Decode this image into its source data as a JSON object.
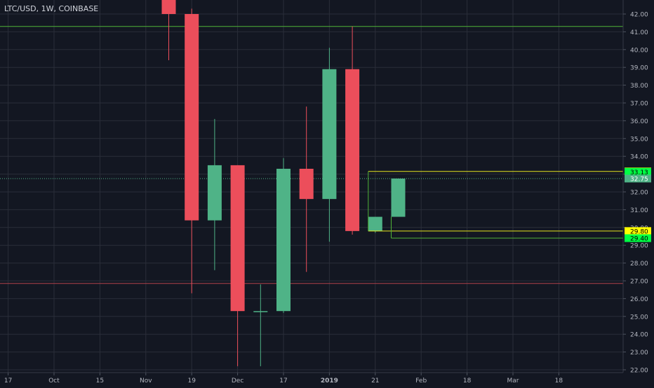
{
  "header": {
    "symbol_title": "LTC/USD, 1W, COINBASE"
  },
  "colors": {
    "background": "#131722",
    "grid": "#2a2e39",
    "up_candle": "#4fb387",
    "down_candle": "#ec4e5b",
    "axis_text": "#b2b5be",
    "level_green": "#4fb337",
    "level_yellow": "#e6e61e",
    "level_red": "#b0404a",
    "label_yellow": "#ffff00",
    "label_green": "#00ff44",
    "label_current": "#4fb387"
  },
  "chart_data": {
    "type": "candlestick",
    "title": "LTC/USD, 1W, COINBASE",
    "ylim": [
      21.8,
      42.6
    ],
    "y_ticks": [
      22.0,
      23.0,
      24.0,
      25.0,
      26.0,
      27.0,
      28.0,
      29.0,
      30.0,
      31.0,
      32.0,
      33.0,
      34.0,
      35.0,
      36.0,
      37.0,
      38.0,
      39.0,
      40.0,
      41.0,
      42.0
    ],
    "y_tick_labels": [
      "22.00",
      "23.00",
      "24.00",
      "25.00",
      "26.00",
      "27.00",
      "28.00",
      "29.00",
      "30.00",
      "31.00",
      "32.00",
      "33.00",
      "34.00",
      "35.00",
      "36.00",
      "37.00",
      "38.00",
      "39.00",
      "40.00",
      "41.00",
      "42.00"
    ],
    "x_ticks": [
      {
        "label": "17",
        "index": -1
      },
      {
        "label": "Oct",
        "index": 1
      },
      {
        "label": "15",
        "index": 3
      },
      {
        "label": "Nov",
        "index": 5
      },
      {
        "label": "19",
        "index": 7
      },
      {
        "label": "Dec",
        "index": 9
      },
      {
        "label": "17",
        "index": 11
      },
      {
        "label": "2019",
        "index": 13
      },
      {
        "label": "21",
        "index": 15
      },
      {
        "label": "Feb",
        "index": 17
      },
      {
        "label": "18",
        "index": 19
      },
      {
        "label": "Mar",
        "index": 21
      },
      {
        "label": "18",
        "index": 23
      }
    ],
    "candles": [
      {
        "index": 6,
        "open": 43.2,
        "high": 43.5,
        "low": 39.4,
        "close": 42.0
      },
      {
        "index": 7,
        "open": 42.0,
        "high": 42.3,
        "low": 26.3,
        "close": 30.4
      },
      {
        "index": 8,
        "open": 30.4,
        "high": 36.1,
        "low": 27.6,
        "close": 33.5
      },
      {
        "index": 9,
        "open": 33.5,
        "high": 33.5,
        "low": 22.2,
        "close": 25.3
      },
      {
        "index": 10,
        "open": 25.3,
        "high": 26.8,
        "low": 22.2,
        "close": 25.3
      },
      {
        "index": 11,
        "open": 25.3,
        "high": 33.9,
        "low": 25.2,
        "close": 33.3
      },
      {
        "index": 12,
        "open": 33.3,
        "high": 36.8,
        "low": 27.5,
        "close": 31.6
      },
      {
        "index": 13,
        "open": 31.6,
        "high": 40.1,
        "low": 29.2,
        "close": 38.9
      },
      {
        "index": 14,
        "open": 38.9,
        "high": 41.3,
        "low": 29.6,
        "close": 29.8
      },
      {
        "index": 15,
        "open": 29.8,
        "high": 30.6,
        "low": 29.7,
        "close": 30.6
      },
      {
        "index": 16,
        "open": 30.6,
        "high": 32.75,
        "low": 30.6,
        "close": 32.75
      }
    ],
    "horizontal_lines": [
      {
        "price": 41.3,
        "color": "level_green"
      },
      {
        "price": 26.85,
        "color": "level_red"
      }
    ],
    "current_price_line": {
      "price": 32.75
    },
    "levels": [
      {
        "price": 33.15,
        "label": "33.15",
        "color": "level_yellow",
        "label_bg": "label_yellow",
        "start_index": 15
      },
      {
        "price": 29.8,
        "label": "29.80",
        "color": "level_yellow",
        "label_bg": "label_yellow",
        "start_index": 15
      },
      {
        "price": 29.4,
        "label": "29.40",
        "color": "level_green",
        "label_bg": "label_green",
        "start_index": 16
      }
    ],
    "price_labels": [
      {
        "price": 33.13,
        "label": "33.13",
        "label_bg": "label_green"
      },
      {
        "price": 32.75,
        "label": "32.75",
        "label_bg": "label_current"
      }
    ],
    "grid": true
  }
}
